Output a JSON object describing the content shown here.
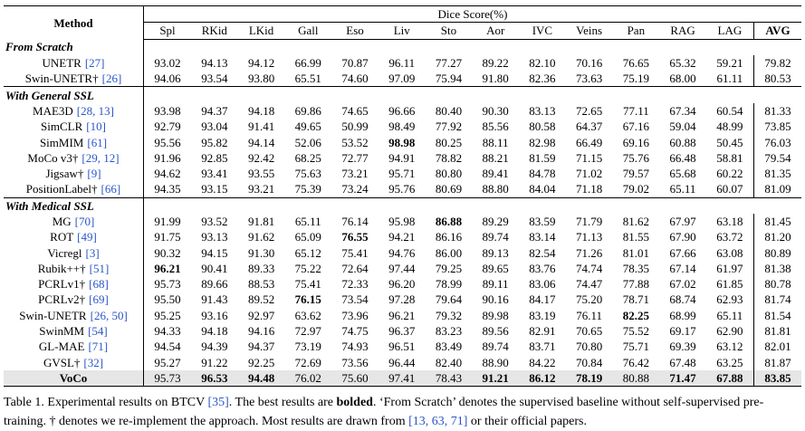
{
  "table": {
    "header": {
      "method": "Method",
      "group": "Dice Score(%)",
      "columns": [
        "Spl",
        "RKid",
        "LKid",
        "Gall",
        "Eso",
        "Liv",
        "Sto",
        "Aor",
        "IVC",
        "Veins",
        "Pan",
        "RAG",
        "LAG",
        "AVG"
      ]
    },
    "sections": [
      {
        "title": "From Scratch",
        "rows": [
          {
            "name": "UNETR",
            "ref": "[27]",
            "values": [
              "93.02",
              "94.13",
              "94.12",
              "66.99",
              "70.87",
              "96.11",
              "77.27",
              "89.22",
              "82.10",
              "70.16",
              "76.65",
              "65.32",
              "59.21",
              "79.82"
            ],
            "bold": []
          },
          {
            "name": "Swin-UNETR†",
            "ref": "[26]",
            "values": [
              "94.06",
              "93.54",
              "93.80",
              "65.51",
              "74.60",
              "97.09",
              "75.94",
              "91.80",
              "82.36",
              "73.63",
              "75.19",
              "68.00",
              "61.11",
              "80.53"
            ],
            "bold": []
          }
        ]
      },
      {
        "title": "With General SSL",
        "rows": [
          {
            "name": "MAE3D",
            "ref": "[28, 13]",
            "values": [
              "93.98",
              "94.37",
              "94.18",
              "69.86",
              "74.65",
              "96.66",
              "80.40",
              "90.30",
              "83.13",
              "72.65",
              "77.11",
              "67.34",
              "60.54",
              "81.33"
            ],
            "bold": []
          },
          {
            "name": "SimCLR",
            "ref": "[10]",
            "values": [
              "92.79",
              "93.04",
              "91.41",
              "49.65",
              "50.99",
              "98.49",
              "77.92",
              "85.56",
              "80.58",
              "64.37",
              "67.16",
              "59.04",
              "48.99",
              "73.85"
            ],
            "bold": []
          },
          {
            "name": "SimMIM",
            "ref": "[61]",
            "values": [
              "95.56",
              "95.82",
              "94.14",
              "52.06",
              "53.52",
              "98.98",
              "80.25",
              "88.11",
              "82.98",
              "66.49",
              "69.16",
              "60.88",
              "50.45",
              "76.03"
            ],
            "bold": [
              5
            ]
          },
          {
            "name": "MoCo v3†",
            "ref": "[29, 12]",
            "values": [
              "91.96",
              "92.85",
              "92.42",
              "68.25",
              "72.77",
              "94.91",
              "78.82",
              "88.21",
              "81.59",
              "71.15",
              "75.76",
              "66.48",
              "58.81",
              "79.54"
            ],
            "bold": []
          },
          {
            "name": "Jigsaw†",
            "ref": "[9]",
            "values": [
              "94.62",
              "93.41",
              "93.55",
              "75.63",
              "73.21",
              "95.71",
              "80.80",
              "89.41",
              "84.78",
              "71.02",
              "79.57",
              "65.68",
              "60.22",
              "81.35"
            ],
            "bold": []
          },
          {
            "name": "PositionLabel†",
            "ref": "[66]",
            "values": [
              "94.35",
              "93.15",
              "93.21",
              "75.39",
              "73.24",
              "95.76",
              "80.69",
              "88.80",
              "84.04",
              "71.18",
              "79.02",
              "65.11",
              "60.07",
              "81.09"
            ],
            "bold": []
          }
        ]
      },
      {
        "title": "With Medical SSL",
        "rows": [
          {
            "name": "MG",
            "ref": "[70]",
            "values": [
              "91.99",
              "93.52",
              "91.81",
              "65.11",
              "76.14",
              "95.98",
              "86.88",
              "89.29",
              "83.59",
              "71.79",
              "81.62",
              "67.97",
              "63.18",
              "81.45"
            ],
            "bold": [
              6
            ]
          },
          {
            "name": "ROT",
            "ref": "[49]",
            "values": [
              "91.75",
              "93.13",
              "91.62",
              "65.09",
              "76.55",
              "94.21",
              "86.16",
              "89.74",
              "83.14",
              "71.13",
              "81.55",
              "67.90",
              "63.72",
              "81.20"
            ],
            "bold": [
              4
            ]
          },
          {
            "name": "Vicregl",
            "ref": "[3]",
            "values": [
              "90.32",
              "94.15",
              "91.30",
              "65.12",
              "75.41",
              "94.76",
              "86.00",
              "89.13",
              "82.54",
              "71.26",
              "81.01",
              "67.66",
              "63.08",
              "80.89"
            ],
            "bold": []
          },
          {
            "name": "Rubik++†",
            "ref": "[51]",
            "values": [
              "96.21",
              "90.41",
              "89.33",
              "75.22",
              "72.64",
              "97.44",
              "79.25",
              "89.65",
              "83.76",
              "74.74",
              "78.35",
              "67.14",
              "61.97",
              "81.38"
            ],
            "bold": [
              0
            ]
          },
          {
            "name": "PCRLv1†",
            "ref": "[68]",
            "values": [
              "95.73",
              "89.66",
              "88.53",
              "75.41",
              "72.33",
              "96.20",
              "78.99",
              "89.11",
              "83.06",
              "74.47",
              "77.88",
              "67.02",
              "61.85",
              "80.78"
            ],
            "bold": []
          },
          {
            "name": "PCRLv2†",
            "ref": "[69]",
            "values": [
              "95.50",
              "91.43",
              "89.52",
              "76.15",
              "73.54",
              "97.28",
              "79.64",
              "90.16",
              "84.17",
              "75.20",
              "78.71",
              "68.74",
              "62.93",
              "81.74"
            ],
            "bold": [
              3
            ]
          },
          {
            "name": "Swin-UNETR",
            "ref": "[26, 50]",
            "values": [
              "95.25",
              "93.16",
              "92.97",
              "63.62",
              "73.96",
              "96.21",
              "79.32",
              "89.98",
              "83.19",
              "76.11",
              "82.25",
              "68.99",
              "65.11",
              "81.54"
            ],
            "bold": [
              10
            ]
          },
          {
            "name": "SwinMM",
            "ref": "[54]",
            "values": [
              "94.33",
              "94.18",
              "94.16",
              "72.97",
              "74.75",
              "96.37",
              "83.23",
              "89.56",
              "82.91",
              "70.65",
              "75.52",
              "69.17",
              "62.90",
              "81.81"
            ],
            "bold": []
          },
          {
            "name": "GL-MAE",
            "ref": "[71]",
            "values": [
              "94.54",
              "94.39",
              "94.37",
              "73.19",
              "74.93",
              "96.51",
              "83.49",
              "89.74",
              "83.71",
              "70.80",
              "75.71",
              "69.39",
              "63.12",
              "82.01"
            ],
            "bold": []
          },
          {
            "name": "GVSL†",
            "ref": "[32]",
            "values": [
              "95.27",
              "91.22",
              "92.25",
              "72.69",
              "73.56",
              "96.44",
              "82.40",
              "88.90",
              "84.22",
              "70.84",
              "76.42",
              "67.48",
              "63.25",
              "81.87"
            ],
            "bold": []
          },
          {
            "name": "VoCo",
            "values": [
              "95.73",
              "96.53",
              "94.48",
              "76.02",
              "75.60",
              "97.41",
              "78.43",
              "91.21",
              "86.12",
              "78.19",
              "80.88",
              "71.47",
              "67.88",
              "83.85"
            ],
            "bold": [
              1,
              2,
              7,
              8,
              9,
              11,
              12,
              13
            ],
            "highlight": true
          }
        ]
      }
    ],
    "caption": [
      {
        "text": "Table 1. Experimental results on BTCV "
      },
      {
        "text": "[35]",
        "style": "ref"
      },
      {
        "text": ". The best results are "
      },
      {
        "text": "bolded",
        "style": "bold"
      },
      {
        "text": ". ‘From Scratch’ denotes the supervised baseline without self-supervised pre-training. † denotes we re-implement the approach. Most results are drawn from "
      },
      {
        "text": "[13, 63, 71]",
        "style": "ref"
      },
      {
        "text": " or their official papers."
      }
    ]
  }
}
